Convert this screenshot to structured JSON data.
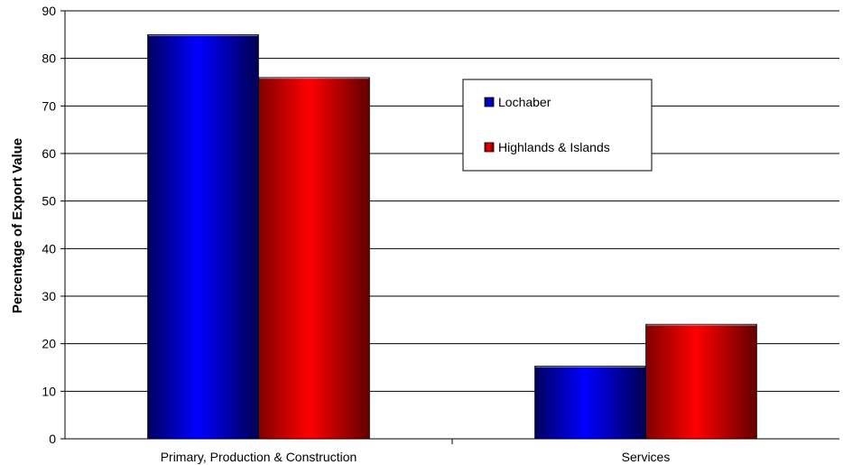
{
  "chart_data": {
    "type": "bar",
    "title": "",
    "xlabel": "",
    "ylabel": "Percentage of Export Value",
    "ylim": [
      0,
      90
    ],
    "yticks": [
      0,
      10,
      20,
      30,
      40,
      50,
      60,
      70,
      80,
      90
    ],
    "grid": true,
    "legend_position": "top-right",
    "categories": [
      "Primary, Production & Construction",
      "Services"
    ],
    "series": [
      {
        "name": "Lochaber",
        "values": [
          85,
          15.3
        ],
        "color": "#0000ff"
      },
      {
        "name": "Highlands & Islands",
        "values": [
          76,
          24.1
        ],
        "color": "#ff0000"
      }
    ]
  }
}
